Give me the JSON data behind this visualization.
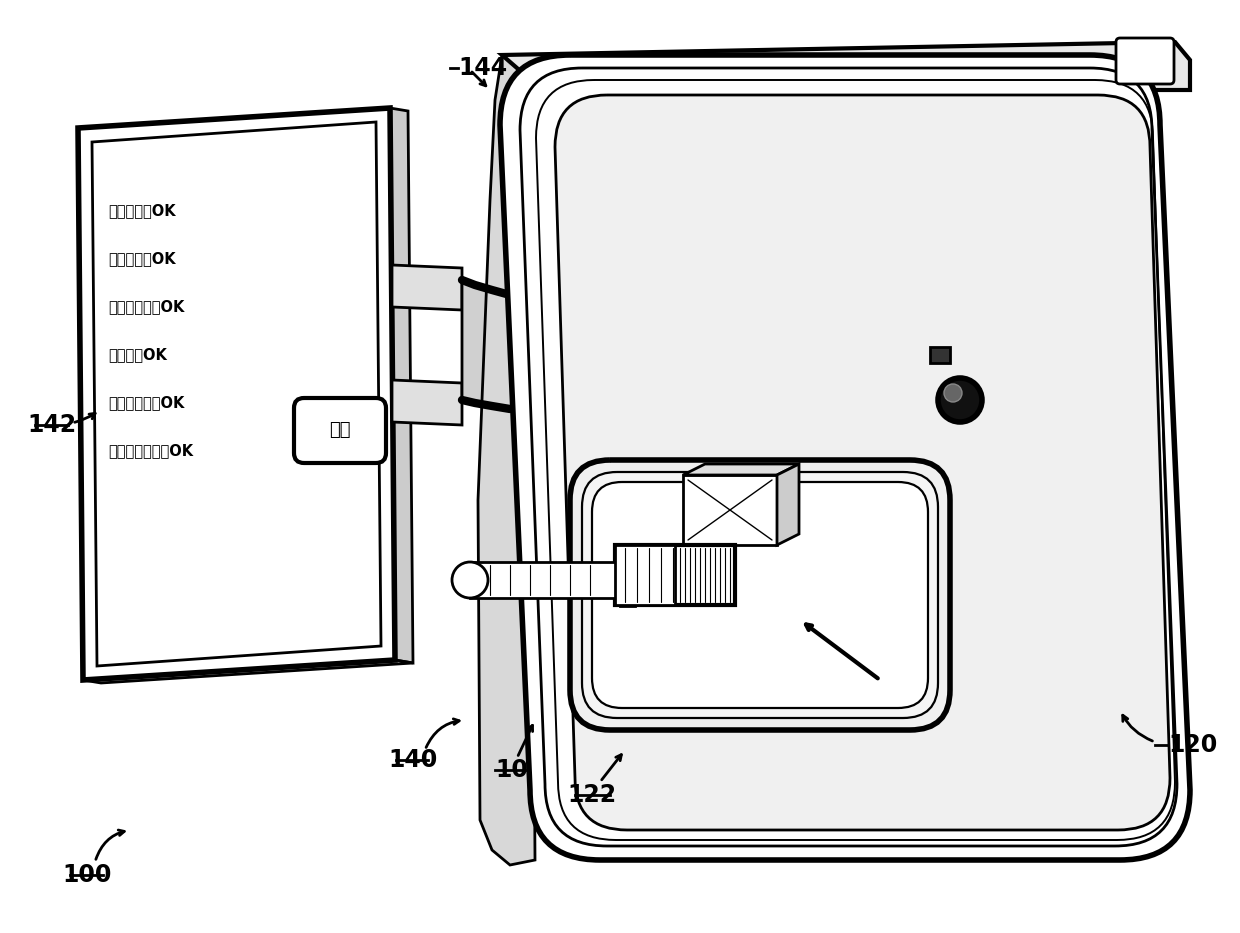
{
  "bg_color": "#ffffff",
  "lc": "#000000",
  "lw": 2.0,
  "display_text_lines": [
    "真空接口：OK",
    "混合检查：OK",
    "血液传感器：OK",
    "服务値：OK",
    "加热器温度：OK",
    "条形码读取器：OK"
  ],
  "button_text": "开始",
  "label_fontsize": 17
}
